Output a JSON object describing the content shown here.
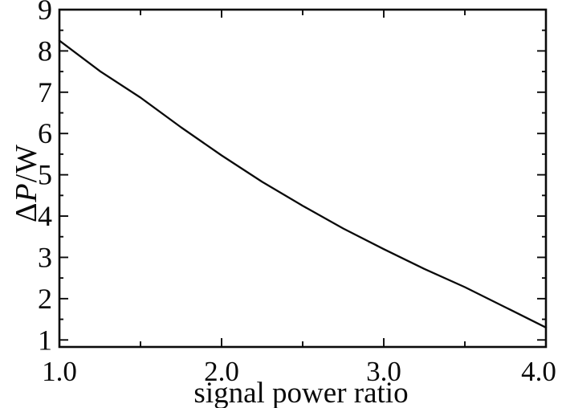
{
  "figure": {
    "background": "#ffffff",
    "foreground": "#0a0a0a"
  },
  "chart_data": {
    "type": "line",
    "title": "",
    "xlabel": "signal power ratio",
    "ylabel": "ΔP/W",
    "ylabel_parts": {
      "prefix": "Δ",
      "italic": "P",
      "suffix": "/W"
    },
    "xlim": [
      1.0,
      4.0
    ],
    "ylim": [
      0.83,
      9.0
    ],
    "grid": false,
    "legend": null,
    "x_major_ticks": [
      1.0,
      2.0,
      3.0,
      4.0
    ],
    "x_major_tick_labels": [
      "1.0",
      "2.0",
      "3.0",
      "4.0"
    ],
    "x_minor_ticks": [
      1.5,
      2.5,
      3.5
    ],
    "y_major_ticks": [
      1,
      2,
      3,
      4,
      5,
      6,
      7,
      8,
      9
    ],
    "y_major_tick_labels": [
      "1",
      "2",
      "3",
      "4",
      "5",
      "6",
      "7",
      "8",
      "9"
    ],
    "y_minor_ticks": [
      1.5,
      2.5,
      3.5,
      4.5,
      5.5,
      6.5,
      7.5,
      8.5
    ],
    "line_color": "#0a0a0a",
    "series": [
      {
        "x": [
          1.0,
          1.25,
          1.5,
          1.75,
          2.0,
          2.25,
          2.5,
          2.75,
          3.0,
          3.25,
          3.5,
          3.75,
          4.0
        ],
        "y": [
          8.25,
          7.51,
          6.87,
          6.15,
          5.47,
          4.83,
          4.25,
          3.7,
          3.2,
          2.72,
          2.28,
          1.79,
          1.3
        ]
      }
    ]
  }
}
